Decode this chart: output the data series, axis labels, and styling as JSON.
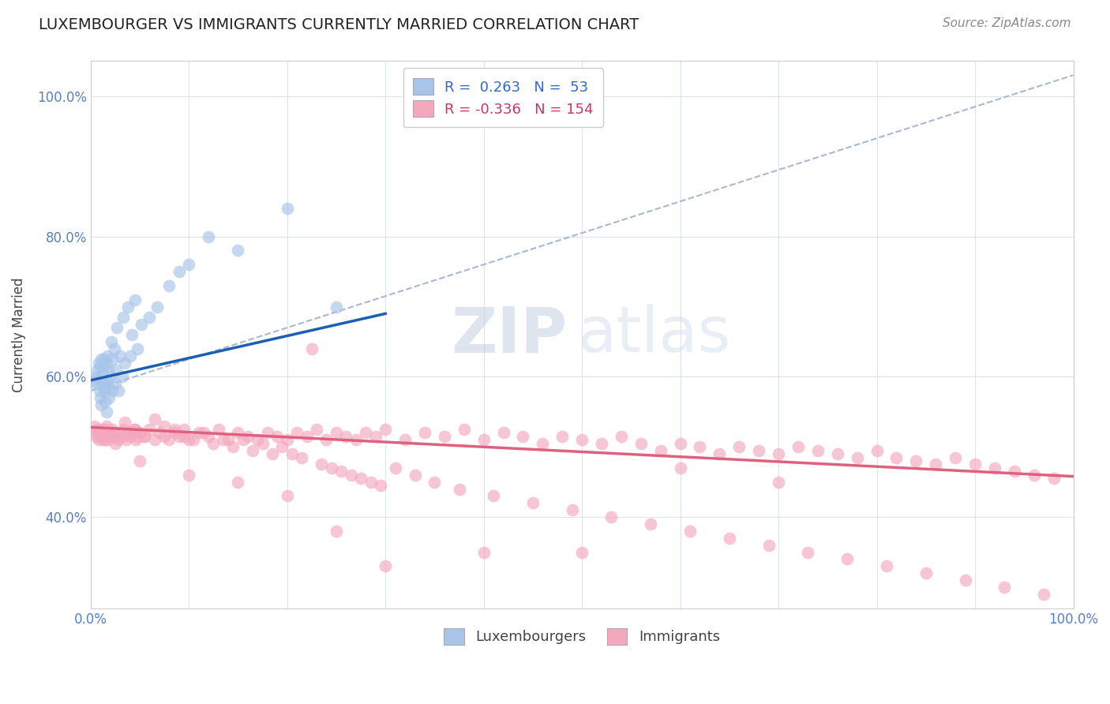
{
  "title": "LUXEMBOURGER VS IMMIGRANTS CURRENTLY MARRIED CORRELATION CHART",
  "source": "Source: ZipAtlas.com",
  "ylabel": "Currently Married",
  "xlim": [
    0.0,
    1.0
  ],
  "ylim": [
    0.27,
    1.05
  ],
  "xticks": [
    0.0,
    0.1,
    0.2,
    0.3,
    0.4,
    0.5,
    0.6,
    0.7,
    0.8,
    0.9,
    1.0
  ],
  "yticks": [
    0.4,
    0.6,
    0.8,
    1.0
  ],
  "xticklabels": [
    "0.0%",
    "",
    "",
    "",
    "",
    "",
    "",
    "",
    "",
    "",
    "100.0%"
  ],
  "yticklabels": [
    "40.0%",
    "60.0%",
    "80.0%",
    "100.0%"
  ],
  "blue_R": "0.263",
  "blue_N": "53",
  "pink_R": "-0.336",
  "pink_N": "154",
  "blue_color": "#a8c4e8",
  "pink_color": "#f4a8be",
  "blue_line_color": "#1a5fb4",
  "pink_line_color": "#e06080",
  "dashed_line_color": "#a8b8d0",
  "watermark_zip": "ZIP",
  "watermark_atlas": "atlas",
  "legend_blue_label": "Luxembourgers",
  "legend_pink_label": "Immigrants",
  "blue_scatter_x": [
    0.004,
    0.005,
    0.006,
    0.007,
    0.008,
    0.009,
    0.01,
    0.01,
    0.011,
    0.011,
    0.012,
    0.012,
    0.013,
    0.013,
    0.014,
    0.014,
    0.015,
    0.015,
    0.016,
    0.016,
    0.017,
    0.017,
    0.018,
    0.018,
    0.019,
    0.02,
    0.021,
    0.022,
    0.023,
    0.024,
    0.025,
    0.026,
    0.027,
    0.028,
    0.03,
    0.032,
    0.033,
    0.035,
    0.038,
    0.04,
    0.042,
    0.045,
    0.048,
    0.052,
    0.06,
    0.068,
    0.08,
    0.09,
    0.1,
    0.12,
    0.15,
    0.2,
    0.25
  ],
  "blue_scatter_y": [
    0.595,
    0.59,
    0.6,
    0.61,
    0.62,
    0.58,
    0.615,
    0.57,
    0.625,
    0.56,
    0.59,
    0.605,
    0.595,
    0.615,
    0.58,
    0.625,
    0.585,
    0.565,
    0.62,
    0.55,
    0.63,
    0.595,
    0.585,
    0.61,
    0.57,
    0.6,
    0.65,
    0.58,
    0.625,
    0.64,
    0.59,
    0.61,
    0.67,
    0.58,
    0.63,
    0.6,
    0.685,
    0.62,
    0.7,
    0.63,
    0.66,
    0.71,
    0.64,
    0.675,
    0.685,
    0.7,
    0.73,
    0.75,
    0.76,
    0.8,
    0.78,
    0.84,
    0.7
  ],
  "pink_scatter_x": [
    0.004,
    0.005,
    0.006,
    0.007,
    0.008,
    0.009,
    0.01,
    0.011,
    0.012,
    0.013,
    0.014,
    0.015,
    0.016,
    0.017,
    0.018,
    0.019,
    0.02,
    0.022,
    0.024,
    0.026,
    0.028,
    0.03,
    0.032,
    0.034,
    0.036,
    0.038,
    0.04,
    0.042,
    0.044,
    0.046,
    0.048,
    0.05,
    0.055,
    0.06,
    0.065,
    0.07,
    0.075,
    0.08,
    0.085,
    0.09,
    0.095,
    0.1,
    0.11,
    0.12,
    0.13,
    0.14,
    0.15,
    0.16,
    0.17,
    0.18,
    0.19,
    0.2,
    0.21,
    0.22,
    0.23,
    0.24,
    0.25,
    0.26,
    0.27,
    0.28,
    0.29,
    0.3,
    0.32,
    0.34,
    0.36,
    0.38,
    0.4,
    0.42,
    0.44,
    0.46,
    0.48,
    0.5,
    0.52,
    0.54,
    0.56,
    0.58,
    0.6,
    0.62,
    0.64,
    0.66,
    0.68,
    0.7,
    0.72,
    0.74,
    0.76,
    0.78,
    0.8,
    0.82,
    0.84,
    0.86,
    0.88,
    0.9,
    0.92,
    0.94,
    0.96,
    0.98,
    0.015,
    0.025,
    0.035,
    0.045,
    0.055,
    0.065,
    0.075,
    0.085,
    0.095,
    0.105,
    0.115,
    0.125,
    0.135,
    0.145,
    0.155,
    0.165,
    0.175,
    0.185,
    0.195,
    0.205,
    0.215,
    0.225,
    0.235,
    0.245,
    0.255,
    0.265,
    0.275,
    0.285,
    0.295,
    0.31,
    0.33,
    0.35,
    0.375,
    0.41,
    0.45,
    0.49,
    0.53,
    0.57,
    0.61,
    0.65,
    0.69,
    0.73,
    0.77,
    0.81,
    0.85,
    0.89,
    0.93,
    0.97,
    0.05,
    0.1,
    0.15,
    0.2,
    0.25,
    0.3,
    0.4,
    0.5,
    0.6,
    0.7
  ],
  "pink_scatter_y": [
    0.53,
    0.52,
    0.515,
    0.525,
    0.51,
    0.52,
    0.515,
    0.525,
    0.52,
    0.51,
    0.515,
    0.525,
    0.53,
    0.515,
    0.51,
    0.52,
    0.515,
    0.525,
    0.52,
    0.515,
    0.51,
    0.52,
    0.515,
    0.525,
    0.51,
    0.52,
    0.515,
    0.52,
    0.525,
    0.51,
    0.515,
    0.52,
    0.515,
    0.525,
    0.51,
    0.52,
    0.515,
    0.51,
    0.52,
    0.515,
    0.525,
    0.51,
    0.52,
    0.515,
    0.525,
    0.51,
    0.52,
    0.515,
    0.51,
    0.52,
    0.515,
    0.51,
    0.52,
    0.515,
    0.525,
    0.51,
    0.52,
    0.515,
    0.51,
    0.52,
    0.515,
    0.525,
    0.51,
    0.52,
    0.515,
    0.525,
    0.51,
    0.52,
    0.515,
    0.505,
    0.515,
    0.51,
    0.505,
    0.515,
    0.505,
    0.495,
    0.505,
    0.5,
    0.49,
    0.5,
    0.495,
    0.49,
    0.5,
    0.495,
    0.49,
    0.485,
    0.495,
    0.485,
    0.48,
    0.475,
    0.485,
    0.475,
    0.47,
    0.465,
    0.46,
    0.455,
    0.51,
    0.505,
    0.535,
    0.525,
    0.515,
    0.54,
    0.53,
    0.525,
    0.515,
    0.51,
    0.52,
    0.505,
    0.51,
    0.5,
    0.51,
    0.495,
    0.505,
    0.49,
    0.5,
    0.49,
    0.485,
    0.64,
    0.475,
    0.47,
    0.465,
    0.46,
    0.455,
    0.45,
    0.445,
    0.47,
    0.46,
    0.45,
    0.44,
    0.43,
    0.42,
    0.41,
    0.4,
    0.39,
    0.38,
    0.37,
    0.36,
    0.35,
    0.34,
    0.33,
    0.32,
    0.31,
    0.3,
    0.29,
    0.48,
    0.46,
    0.45,
    0.43,
    0.38,
    0.33,
    0.35,
    0.35,
    0.47,
    0.45
  ]
}
